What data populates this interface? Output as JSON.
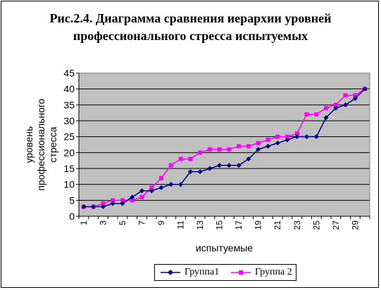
{
  "title_lines": [
    "Рис.2.4. Диаграмма сравнения  иерархии уровней",
    "профессионального стресса испытуемых"
  ],
  "colors": {
    "plot_background": "#c0c0c0",
    "gridline": "#000000",
    "series1": "#000080",
    "series2": "#ff00ff"
  },
  "chart_data": {
    "type": "line",
    "title": "",
    "xlabel": "испытуемые",
    "ylabel": "уровень профессионального стресса",
    "ylabel_lines": [
      "уровень",
      "профессионального",
      "стресса"
    ],
    "ylim": [
      0,
      45
    ],
    "yticks": [
      0,
      5,
      10,
      15,
      20,
      25,
      30,
      35,
      40,
      45
    ],
    "grid": true,
    "legend": "bottom",
    "x": [
      1,
      2,
      3,
      4,
      5,
      6,
      7,
      8,
      9,
      10,
      11,
      12,
      13,
      14,
      15,
      16,
      17,
      18,
      19,
      20,
      21,
      22,
      23,
      24,
      25,
      26,
      27,
      28,
      29,
      30
    ],
    "xtick_labels": [
      "1",
      "3",
      "5",
      "7",
      "9",
      "11",
      "13",
      "15",
      "17",
      "19",
      "21",
      "23",
      "25",
      "27",
      "29"
    ],
    "series": [
      {
        "name": "Группа1",
        "marker": "diamond",
        "values": [
          3,
          3,
          3,
          4,
          4,
          6,
          8,
          8,
          9,
          10,
          10,
          14,
          14,
          15,
          16,
          16,
          16,
          18,
          21,
          22,
          23,
          24,
          25,
          25,
          25,
          31,
          34,
          35,
          37,
          40
        ]
      },
      {
        "name": "Группа 2",
        "marker": "square",
        "values": [
          3,
          3,
          4,
          5,
          5,
          5,
          6,
          9,
          12,
          16,
          18,
          18,
          20,
          21,
          21,
          21,
          22,
          22,
          23,
          24,
          25,
          25,
          26,
          32,
          32,
          34,
          35,
          38,
          38,
          40
        ]
      }
    ]
  }
}
